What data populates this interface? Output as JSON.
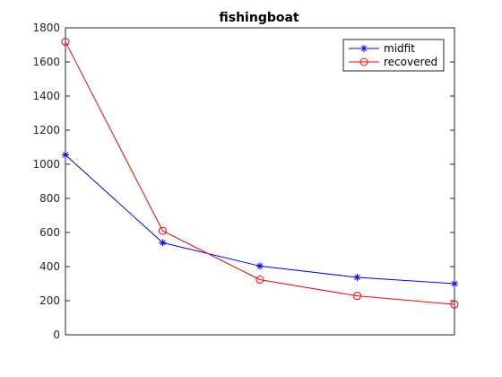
{
  "chart_data": {
    "type": "line",
    "title": "fishingboat",
    "xlabel": "",
    "ylabel": "",
    "x": [
      1,
      2,
      3,
      4,
      5
    ],
    "xlim": [
      1,
      5
    ],
    "ylim": [
      0,
      1800
    ],
    "yticks": [
      0,
      200,
      400,
      600,
      800,
      1000,
      1200,
      1400,
      1600,
      1800
    ],
    "grid": false,
    "legend_position": "top-right",
    "series": [
      {
        "name": "midfit",
        "color": "#0000ff",
        "marker": "asterisk",
        "values": [
          1055,
          540,
          403,
          337,
          300
        ]
      },
      {
        "name": "recovered",
        "color": "#ff0000",
        "marker": "circle",
        "values": [
          1718,
          610,
          323,
          228,
          178
        ]
      }
    ]
  }
}
